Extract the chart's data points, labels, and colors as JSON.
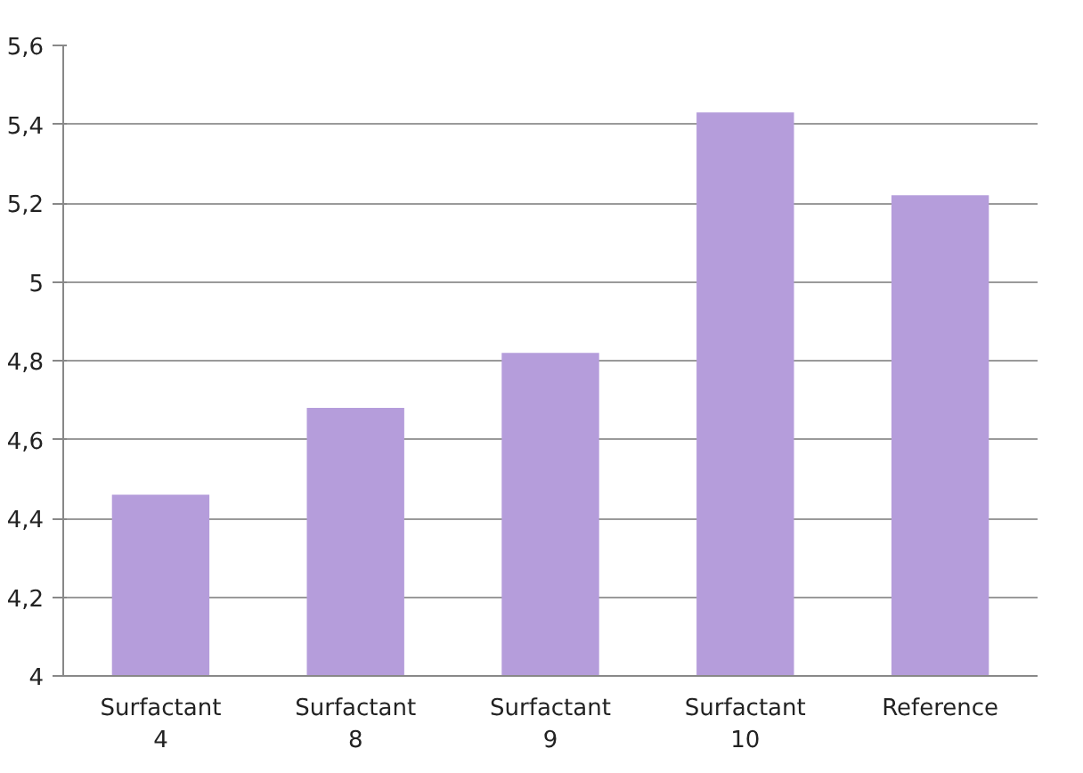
{
  "chart_data": {
    "type": "bar",
    "categories": [
      "Surfactant 4",
      "Surfactant 8",
      "Surfactant 9",
      "Surfactant 10",
      "Reference"
    ],
    "values": [
      4.46,
      4.68,
      4.82,
      5.43,
      5.22
    ],
    "color": "#b59ddb",
    "ylim": [
      4,
      5.6
    ],
    "yticks": [
      {
        "value": 4,
        "label": "4"
      },
      {
        "value": 4.2,
        "label": "4,2"
      },
      {
        "value": 4.4,
        "label": "4,4"
      },
      {
        "value": 4.6,
        "label": "4,6"
      },
      {
        "value": 4.8,
        "label": "4,8"
      },
      {
        "value": 5,
        "label": "5"
      },
      {
        "value": 5.2,
        "label": "5,2"
      },
      {
        "value": 5.4,
        "label": "5,4"
      },
      {
        "value": 5.6,
        "label": "5,6"
      }
    ],
    "grid": "y"
  }
}
